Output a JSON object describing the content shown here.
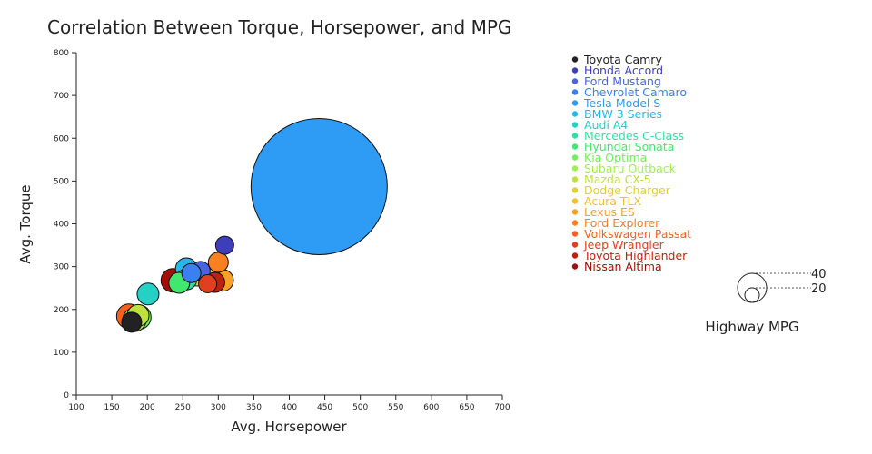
{
  "chart_data": {
    "type": "scatter",
    "title": "Correlation Between Torque, Horsepower, and MPG",
    "xlabel": "Avg. Horsepower",
    "ylabel": "Avg. Torque",
    "xlim": [
      100,
      700
    ],
    "ylim": [
      0,
      800
    ],
    "xticks": [
      100,
      150,
      200,
      250,
      300,
      350,
      400,
      450,
      500,
      550,
      600,
      650,
      700
    ],
    "yticks": [
      0,
      100,
      200,
      300,
      400,
      500,
      600,
      700,
      800
    ],
    "size_variable": "Highway MPG",
    "size_legend": {
      "title": "Highway MPG",
      "values": [
        40,
        20
      ]
    },
    "legend_position": "right",
    "grid": false,
    "series": [
      {
        "name": "Toyota Camry",
        "color": "#222222",
        "x": 178,
        "y": 170,
        "size": 22
      },
      {
        "name": "Honda Accord",
        "color": "#3e3ebb",
        "x": 309,
        "y": 350,
        "size": 20
      },
      {
        "name": "Ford Mustang",
        "color": "#4a63e0",
        "x": 275,
        "y": 290,
        "size": 21
      },
      {
        "name": "Chevrolet Camaro",
        "color": "#3b80f0",
        "x": 262,
        "y": 285,
        "size": 21
      },
      {
        "name": "Tesla Model S",
        "color": "#2e9cf5",
        "x": 442,
        "y": 487,
        "size": 150
      },
      {
        "name": "BMW 3 Series",
        "color": "#25b8e8",
        "x": 255,
        "y": 295,
        "size": 24
      },
      {
        "name": "Audi A4",
        "color": "#24d1c4",
        "x": 201,
        "y": 236,
        "size": 24
      },
      {
        "name": "Mercedes C-Class",
        "color": "#30e0a0",
        "x": 255,
        "y": 270,
        "size": 23
      },
      {
        "name": "Hyundai Sonata",
        "color": "#40e870",
        "x": 245,
        "y": 262,
        "size": 23
      },
      {
        "name": "Kia Optima",
        "color": "#6ef058",
        "x": 188,
        "y": 182,
        "size": 27
      },
      {
        "name": "Subaru Outback",
        "color": "#a0f048",
        "x": 182,
        "y": 176,
        "size": 26
      },
      {
        "name": "Mazda CX-5",
        "color": "#c0e040",
        "x": 187,
        "y": 186,
        "size": 24
      },
      {
        "name": "Dodge Charger",
        "color": "#e0d030",
        "x": 270,
        "y": 280,
        "size": 24
      },
      {
        "name": "Acura TLX",
        "color": "#f0c030",
        "x": 290,
        "y": 270,
        "size": 23
      },
      {
        "name": "Lexus ES",
        "color": "#f8a028",
        "x": 306,
        "y": 268,
        "size": 24
      },
      {
        "name": "Ford Explorer",
        "color": "#f88020",
        "x": 300,
        "y": 310,
        "size": 22
      },
      {
        "name": "Volkswagen Passat",
        "color": "#f86020",
        "x": 174,
        "y": 184,
        "size": 27
      },
      {
        "name": "Jeep Wrangler",
        "color": "#e04020",
        "x": 285,
        "y": 260,
        "size": 20
      },
      {
        "name": "Toyota Highlander",
        "color": "#c02010",
        "x": 295,
        "y": 263,
        "size": 22
      },
      {
        "name": "Nissan Altima",
        "color": "#a01008",
        "x": 236,
        "y": 268,
        "size": 26
      }
    ]
  }
}
